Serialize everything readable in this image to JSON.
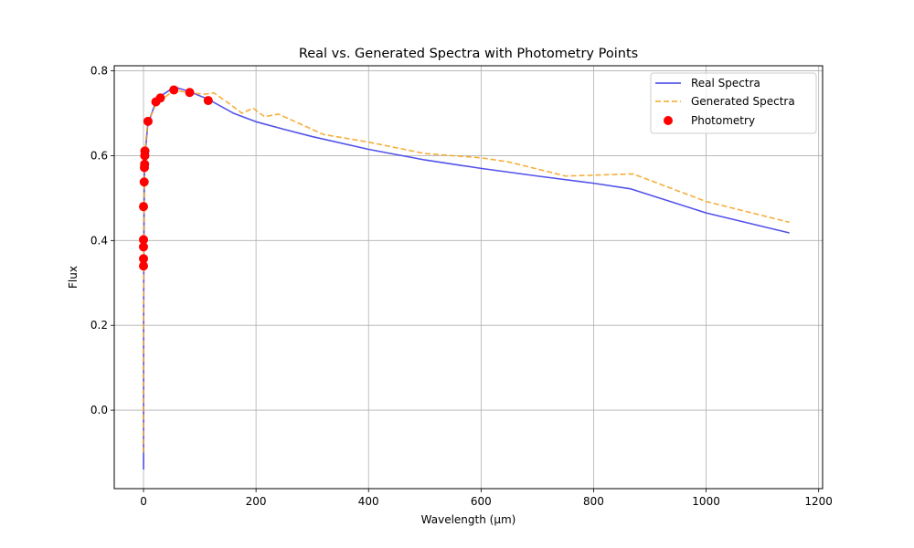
{
  "chart_data": {
    "type": "line",
    "title": "Real vs. Generated Spectra with Photometry Points",
    "xlabel": "Wavelength (µm)",
    "ylabel": "Flux",
    "xlim": [
      -52,
      1207
    ],
    "ylim": [
      -0.185,
      0.812
    ],
    "xticks": [
      0,
      200,
      400,
      600,
      800,
      1000,
      1200
    ],
    "xtick_labels": [
      "0",
      "200",
      "400",
      "600",
      "800",
      "1000",
      "1200"
    ],
    "yticks": [
      0.0,
      0.2,
      0.4,
      0.6,
      0.8
    ],
    "ytick_labels": [
      "0.0",
      "0.2",
      "0.4",
      "0.6",
      "0.8"
    ],
    "grid": true,
    "legend_position": "top-right",
    "series": [
      {
        "name": "Real Spectra",
        "style": "solid",
        "color": "#3f3fe8",
        "points": [
          [
            0.1,
            -0.14
          ],
          [
            0.3,
            0.2
          ],
          [
            0.5,
            0.34
          ],
          [
            1.0,
            0.45
          ],
          [
            1.6,
            0.55
          ],
          [
            2.5,
            0.59
          ],
          [
            4,
            0.62
          ],
          [
            6,
            0.65
          ],
          [
            8,
            0.68
          ],
          [
            12,
            0.69
          ],
          [
            20,
            0.72
          ],
          [
            30,
            0.74
          ],
          [
            55,
            0.762
          ],
          [
            80,
            0.752
          ],
          [
            115,
            0.733
          ],
          [
            160,
            0.7
          ],
          [
            200,
            0.68
          ],
          [
            250,
            0.662
          ],
          [
            300,
            0.645
          ],
          [
            400,
            0.615
          ],
          [
            500,
            0.59
          ],
          [
            600,
            0.57
          ],
          [
            700,
            0.552
          ],
          [
            800,
            0.535
          ],
          [
            865,
            0.522
          ],
          [
            1000,
            0.465
          ],
          [
            1148,
            0.418
          ]
        ]
      },
      {
        "name": "Generated Spectra",
        "style": "dashed",
        "color": "#f5a524",
        "points": [
          [
            0.1,
            -0.1
          ],
          [
            0.3,
            0.22
          ],
          [
            0.5,
            0.36
          ],
          [
            1.0,
            0.48
          ],
          [
            1.6,
            0.56
          ],
          [
            2.5,
            0.6
          ],
          [
            4,
            0.63
          ],
          [
            6,
            0.66
          ],
          [
            8,
            0.68
          ],
          [
            12,
            0.69
          ],
          [
            20,
            0.715
          ],
          [
            30,
            0.73
          ],
          [
            55,
            0.755
          ],
          [
            80,
            0.748
          ],
          [
            110,
            0.745
          ],
          [
            125,
            0.748
          ],
          [
            150,
            0.725
          ],
          [
            175,
            0.7
          ],
          [
            195,
            0.712
          ],
          [
            215,
            0.692
          ],
          [
            240,
            0.698
          ],
          [
            320,
            0.65
          ],
          [
            400,
            0.632
          ],
          [
            500,
            0.605
          ],
          [
            600,
            0.595
          ],
          [
            650,
            0.585
          ],
          [
            750,
            0.552
          ],
          [
            870,
            0.557
          ],
          [
            1000,
            0.492
          ],
          [
            1148,
            0.443
          ]
        ]
      }
    ],
    "scatter": {
      "name": "Photometry",
      "color": "#ff0000",
      "points": [
        [
          0.0,
          0.34
        ],
        [
          0.0,
          0.357
        ],
        [
          0.0,
          0.385
        ],
        [
          0.0,
          0.402
        ],
        [
          0.0,
          0.48
        ],
        [
          1.2,
          0.538
        ],
        [
          1.6,
          0.572
        ],
        [
          2.0,
          0.58
        ],
        [
          2.3,
          0.6
        ],
        [
          2.5,
          0.611
        ],
        [
          8,
          0.681
        ],
        [
          22,
          0.727
        ],
        [
          30,
          0.736
        ],
        [
          54,
          0.755
        ],
        [
          82,
          0.749
        ],
        [
          115,
          0.73
        ]
      ]
    }
  }
}
